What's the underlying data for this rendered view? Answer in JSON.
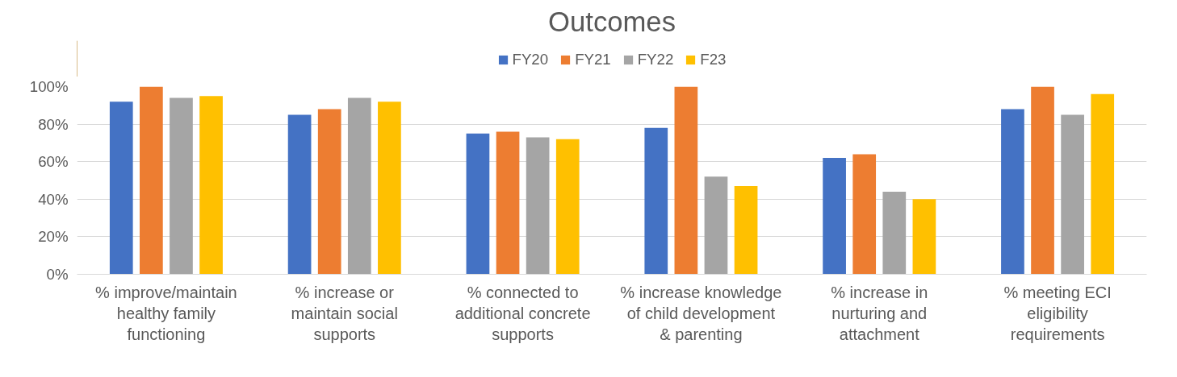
{
  "chart_data": {
    "type": "bar",
    "title": "Outcomes",
    "categories": [
      "% improve/maintain healthy family functioning",
      "% increase or maintain social supports",
      "% connected to additional concrete supports",
      "% increase knowledge of child development & parenting",
      "% increase in nurturing and attachment",
      "% meeting ECI eligibility requirements"
    ],
    "series": [
      {
        "name": "FY20",
        "color": "#4472c4",
        "values": [
          92,
          85,
          75,
          78,
          62,
          88
        ]
      },
      {
        "name": "FY21",
        "color": "#ed7d31",
        "values": [
          100,
          88,
          76,
          100,
          64,
          100
        ]
      },
      {
        "name": "FY22",
        "color": "#a5a5a5",
        "values": [
          94,
          94,
          73,
          52,
          44,
          85
        ]
      },
      {
        "name": "F23",
        "color": "#ffc000",
        "values": [
          95,
          92,
          72,
          47,
          40,
          96
        ]
      }
    ],
    "ylim": [
      0,
      100
    ],
    "yticks": [
      {
        "value": 0,
        "label": "0%"
      },
      {
        "value": 20,
        "label": "20%"
      },
      {
        "value": 40,
        "label": "40%"
      },
      {
        "value": 60,
        "label": "60%"
      },
      {
        "value": 80,
        "label": "80%"
      },
      {
        "value": 100,
        "label": "100%"
      }
    ],
    "grid": "y",
    "legend": "top"
  }
}
